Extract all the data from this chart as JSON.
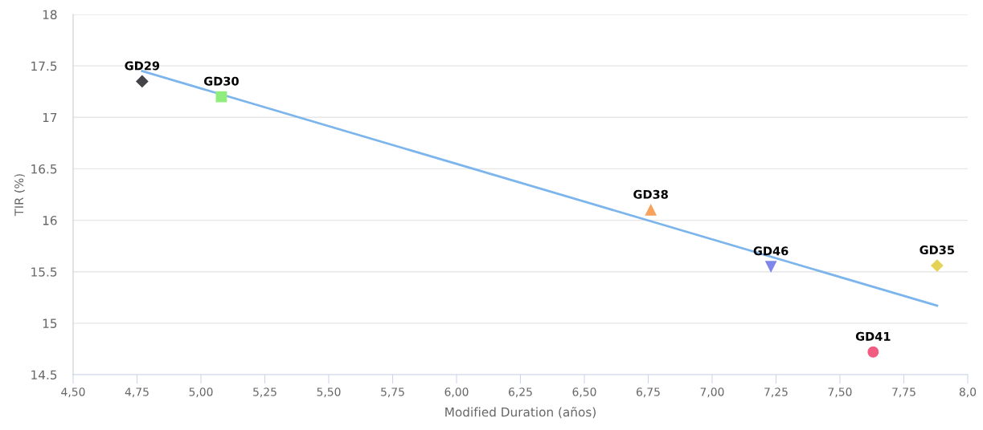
{
  "chart_data": {
    "type": "scatter",
    "xlabel": "Modified Duration (años)",
    "ylabel": "TIR (%)",
    "xlim": [
      4.5,
      8.0
    ],
    "ylim": [
      14.5,
      18
    ],
    "xticks": [
      {
        "value": 4.5,
        "label": "4,50"
      },
      {
        "value": 4.75,
        "label": "4,75"
      },
      {
        "value": 5.0,
        "label": "5,00"
      },
      {
        "value": 5.25,
        "label": "5,25"
      },
      {
        "value": 5.5,
        "label": "5,50"
      },
      {
        "value": 5.75,
        "label": "5,75"
      },
      {
        "value": 6.0,
        "label": "6,00"
      },
      {
        "value": 6.25,
        "label": "6,25"
      },
      {
        "value": 6.5,
        "label": "6,50"
      },
      {
        "value": 6.75,
        "label": "6,75"
      },
      {
        "value": 7.0,
        "label": "7,00"
      },
      {
        "value": 7.25,
        "label": "7,25"
      },
      {
        "value": 7.5,
        "label": "7,50"
      },
      {
        "value": 7.75,
        "label": "7,75"
      },
      {
        "value": 8.0,
        "label": "8,0"
      }
    ],
    "yticks": [
      14.5,
      15,
      15.5,
      16,
      16.5,
      17,
      17.5,
      18
    ],
    "grid": "y",
    "legend": false,
    "series": [
      {
        "name": "GD29",
        "color": "#434348",
        "marker": "diamond",
        "x": [
          4.77
        ],
        "values": [
          17.35
        ]
      },
      {
        "name": "GD30",
        "color": "#90ed7d",
        "marker": "square",
        "x": [
          5.08
        ],
        "values": [
          17.2
        ]
      },
      {
        "name": "GD38",
        "color": "#f7a35c",
        "marker": "triangle",
        "x": [
          6.76
        ],
        "values": [
          16.1
        ]
      },
      {
        "name": "GD46",
        "color": "#8085e9",
        "marker": "triangle-down",
        "x": [
          7.23
        ],
        "values": [
          15.55
        ]
      },
      {
        "name": "GD35",
        "color": "#e4d354",
        "marker": "diamond",
        "x": [
          7.88
        ],
        "values": [
          15.56
        ]
      },
      {
        "name": "GD41",
        "color": "#f15c80",
        "marker": "circle",
        "x": [
          7.63
        ],
        "values": [
          14.72
        ]
      },
      {
        "type": "line",
        "color": "#7cb5ec",
        "marker": "none",
        "x": [
          4.77,
          7.88
        ],
        "values": [
          17.45,
          15.17
        ]
      }
    ]
  }
}
